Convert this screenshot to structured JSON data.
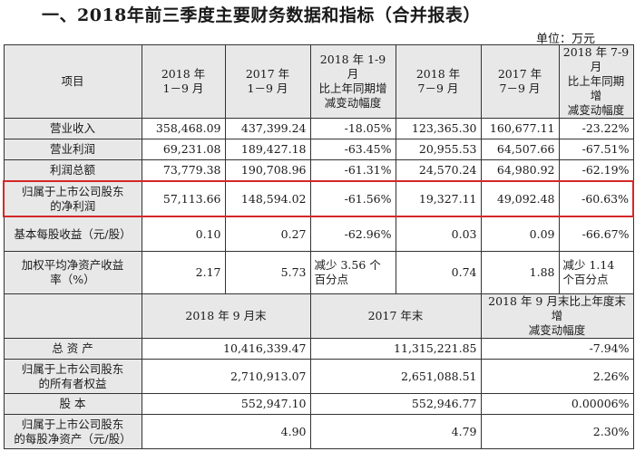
{
  "title": "一、2018年前三季度主要财务数据和指标（合并报表）",
  "unit": "单位：万元",
  "headers": {
    "item": "项目",
    "c1": [
      "2018 年",
      "1－9 月"
    ],
    "c2": [
      "2017 年",
      "1－9 月"
    ],
    "c3": [
      "2018 年 1-9 月",
      "比上年同期增",
      "减变动幅度"
    ],
    "c4": [
      "2018 年",
      "7－9 月"
    ],
    "c5": [
      "2017 年",
      "7－9 月"
    ],
    "c6": [
      "2018 年 7-9 月",
      "比上年同期增",
      "减变动幅度"
    ]
  },
  "rows": [
    {
      "label": [
        "营业收入"
      ],
      "v": [
        "358,468.09",
        "437,399.24",
        "-18.05%",
        "123,365.30",
        "160,677.11",
        "-23.22%"
      ]
    },
    {
      "label": [
        "营业利润"
      ],
      "v": [
        "69,231.08",
        "189,427.18",
        "-63.45%",
        "20,955.53",
        "64,507.66",
        "-67.51%"
      ]
    },
    {
      "label": [
        "利润总额"
      ],
      "v": [
        "73,779.38",
        "190,708.96",
        "-61.31%",
        "24,570.24",
        "64,980.92",
        "-62.19%"
      ]
    },
    {
      "label": [
        "归属于上市公司股东",
        "的净利润"
      ],
      "v": [
        "57,113.66",
        "148,594.02",
        "-61.56%",
        "19,327.11",
        "49,092.48",
        "-60.63%"
      ]
    },
    {
      "label": [
        "基本每股收益（元/股）"
      ],
      "v": [
        "0.10",
        "0.27",
        "-62.96%",
        "0.03",
        "0.09",
        "-66.67%"
      ]
    },
    {
      "label": [
        "加权平均净资产收益",
        "率（%）"
      ],
      "v": [
        "2.17",
        "5.73",
        "减少 3.56 个百分点",
        "0.74",
        "1.88",
        "减少 1.14 个百分点"
      ]
    }
  ],
  "headers2": {
    "a": "2018 年 9 月末",
    "b": "2017 年末",
    "c": [
      "2018 年 9 月末比上年度末增",
      "减变动幅度"
    ]
  },
  "rows2": [
    {
      "label": [
        "总  资  产"
      ],
      "v": [
        "10,416,339.47",
        "11,315,221.85",
        "-7.94%"
      ]
    },
    {
      "label": [
        "归属于上市公司股东",
        "的所有者权益"
      ],
      "v": [
        "2,710,913.07",
        "2,651,088.51",
        "2.26%"
      ]
    },
    {
      "label": [
        "股    本"
      ],
      "v": [
        "552,947.10",
        "552,946.77",
        "0.00006%"
      ]
    },
    {
      "label": [
        "归属于上市公司股东",
        "的每股净资产（元/股）"
      ],
      "v": [
        "4.90",
        "4.79",
        "2.30%"
      ]
    }
  ]
}
